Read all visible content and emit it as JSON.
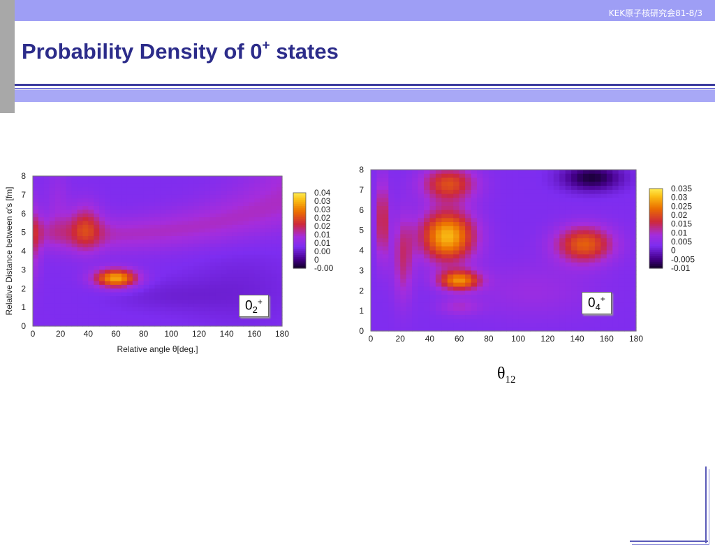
{
  "header": {
    "text": "KEK原子核研究会81-8/3"
  },
  "slide": {
    "title_prefix": "Probability Density of 0",
    "title_sup": "+",
    "title_suffix": " states"
  },
  "annotation": {
    "theta": "θ",
    "theta_sub": "12"
  },
  "chart_data": [
    {
      "type": "heatmap",
      "state_label": {
        "base": "0",
        "sub": "2",
        "sup": "+"
      },
      "xlabel": "Relative angle θ[deg.]",
      "ylabel": "Relative Distance between α's [fm]",
      "xlim": [
        0,
        180
      ],
      "ylim": [
        0,
        8
      ],
      "xticks": [
        "0",
        "20",
        "40",
        "60",
        "80",
        "100",
        "120",
        "140",
        "160",
        "180"
      ],
      "yticks": [
        "0",
        "1",
        "2",
        "3",
        "4",
        "5",
        "6",
        "7",
        "8"
      ],
      "colorbar_ticks": [
        "-0.00",
        "0",
        "0.00",
        "0.01",
        "0.01",
        "0.02",
        "0.02",
        "0.03",
        "0.03",
        "0.04"
      ],
      "colorbar_range": [
        -0.005,
        0.04
      ],
      "background": 0.008,
      "features": [
        {
          "cx": 60,
          "cy": 2.55,
          "sx": 11,
          "sy": 0.35,
          "amp": 0.026
        },
        {
          "cx": 38,
          "cy": 5.3,
          "sx": 8,
          "sy": 0.9,
          "amp": 0.011
        },
        {
          "cx": 2,
          "cy": 4.6,
          "sx": 3,
          "sy": 1.5,
          "amp": 0.007
        },
        {
          "cx": 18,
          "cy": 6.5,
          "sx": 6,
          "sy": 1.4,
          "amp": 0.004
        },
        {
          "cx": 95,
          "cy": 1.6,
          "sx": 30,
          "sy": 0.6,
          "amp": -0.002
        },
        {
          "cx": 150,
          "cy": 2.0,
          "sx": 30,
          "sy": 1.5,
          "amp": -0.002
        }
      ],
      "arc": {
        "ax": 12,
        "ay": 8.8,
        "r0": 3.8,
        "rt": 4.7,
        "sigma": 0.65,
        "amp": 0.007
      }
    },
    {
      "type": "heatmap",
      "state_label": {
        "base": "0",
        "sub": "4",
        "sup": "+"
      },
      "xlim": [
        0,
        180
      ],
      "ylim": [
        0,
        8
      ],
      "xticks": [
        "0",
        "20",
        "40",
        "60",
        "80",
        "100",
        "120",
        "140",
        "160",
        "180"
      ],
      "yticks": [
        "0",
        "1",
        "2",
        "3",
        "4",
        "5",
        "6",
        "7",
        "8"
      ],
      "colorbar_ticks": [
        "-0.01",
        "-0.005",
        "0",
        "0.005",
        "0.01",
        "0.015",
        "0.02",
        "0.025",
        "0.03",
        "0.035"
      ],
      "colorbar_range": [
        -0.01,
        0.035
      ],
      "background": 0.003,
      "features": [
        {
          "cx": 52,
          "cy": 4.7,
          "sx": 13,
          "sy": 0.9,
          "amp": 0.027
        },
        {
          "cx": 53,
          "cy": 7.3,
          "sx": 13,
          "sy": 0.6,
          "amp": 0.017
        },
        {
          "cx": 60,
          "cy": 2.5,
          "sx": 10,
          "sy": 0.35,
          "amp": 0.022
        },
        {
          "cx": 145,
          "cy": 4.3,
          "sx": 14,
          "sy": 0.65,
          "amp": 0.019
        },
        {
          "cx": 150,
          "cy": 7.6,
          "sx": 14,
          "sy": 0.45,
          "amp": -0.012
        },
        {
          "cx": 8,
          "cy": 5.5,
          "sx": 3,
          "sy": 1.4,
          "amp": 0.014
        },
        {
          "cx": 22,
          "cy": 3.6,
          "sx": 5,
          "sy": 1.5,
          "amp": 0.01
        },
        {
          "cx": 60,
          "cy": 1.2,
          "sx": 10,
          "sy": 0.3,
          "amp": 0.006
        },
        {
          "cx": 110,
          "cy": 2.0,
          "sx": 30,
          "sy": 1.0,
          "amp": 0.004
        }
      ]
    }
  ]
}
